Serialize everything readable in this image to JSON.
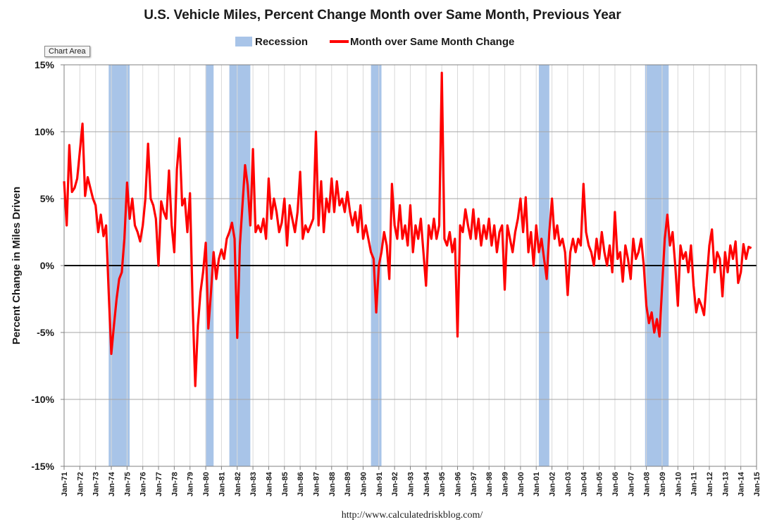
{
  "chart_data": {
    "type": "line",
    "title": "U.S. Vehicle Miles,  Percent Change Month over Same Month, Previous Year",
    "ylabel": "Percent Change in Miles Driven",
    "xlabel": "",
    "source": "http://www.calculatedriskblog.com/",
    "tooltip": "Chart Area",
    "ylim": [
      -15,
      15
    ],
    "y_ticks": [
      -15,
      -10,
      -5,
      0,
      5,
      10,
      15
    ],
    "y_tick_labels": [
      "-15%",
      "-10%",
      "-5%",
      "0%",
      "5%",
      "10%",
      "15%"
    ],
    "x_range": [
      "1971-01",
      "2015-01"
    ],
    "x_tick_labels": [
      "Jan-71",
      "Jan-72",
      "Jan-73",
      "Jan-74",
      "Jan-75",
      "Jan-76",
      "Jan-77",
      "Jan-78",
      "Jan-79",
      "Jan-80",
      "Jan-81",
      "Jan-82",
      "Jan-83",
      "Jan-84",
      "Jan-85",
      "Jan-86",
      "Jan-87",
      "Jan-88",
      "Jan-89",
      "Jan-90",
      "Jan-91",
      "Jan-92",
      "Jan-93",
      "Jan-94",
      "Jan-95",
      "Jan-96",
      "Jan-97",
      "Jan-98",
      "Jan-99",
      "Jan-00",
      "Jan-01",
      "Jan-02",
      "Jan-03",
      "Jan-04",
      "Jan-05",
      "Jan-06",
      "Jan-07",
      "Jan-08",
      "Jan-09",
      "Jan-10",
      "Jan-11",
      "Jan-12",
      "Jan-13",
      "Jan-14",
      "Jan-15"
    ],
    "grid": true,
    "legend_position": "top",
    "legend": [
      {
        "label": "Recession",
        "kind": "box",
        "color": "#a8c4e8"
      },
      {
        "label": "Month over Same Month Change",
        "kind": "line",
        "color": "#ff0000"
      }
    ],
    "recessions": [
      {
        "start": "1973-11",
        "end": "1975-03"
      },
      {
        "start": "1980-01",
        "end": "1980-07"
      },
      {
        "start": "1981-07",
        "end": "1982-11"
      },
      {
        "start": "1990-07",
        "end": "1991-03"
      },
      {
        "start": "2001-03",
        "end": "2001-11"
      },
      {
        "start": "2007-12",
        "end": "2009-06"
      }
    ],
    "series": [
      {
        "name": "Month over Same Month Change",
        "color": "#ff0000",
        "points": [
          [
            "1971-01",
            6.3
          ],
          [
            "1971-03",
            3.0
          ],
          [
            "1971-05",
            9.0
          ],
          [
            "1971-07",
            5.5
          ],
          [
            "1971-09",
            5.8
          ],
          [
            "1971-11",
            6.5
          ],
          [
            "1972-01",
            8.5
          ],
          [
            "1972-03",
            10.6
          ],
          [
            "1972-05",
            5.2
          ],
          [
            "1972-07",
            6.6
          ],
          [
            "1972-09",
            5.8
          ],
          [
            "1972-11",
            5.0
          ],
          [
            "1973-01",
            4.5
          ],
          [
            "1973-03",
            2.5
          ],
          [
            "1973-05",
            3.8
          ],
          [
            "1973-07",
            2.2
          ],
          [
            "1973-09",
            3.0
          ],
          [
            "1973-11",
            -2.0
          ],
          [
            "1974-01",
            -6.6
          ],
          [
            "1974-03",
            -4.5
          ],
          [
            "1974-05",
            -2.5
          ],
          [
            "1974-07",
            -1.0
          ],
          [
            "1974-09",
            -0.5
          ],
          [
            "1974-11",
            2.0
          ],
          [
            "1975-01",
            6.2
          ],
          [
            "1975-03",
            3.5
          ],
          [
            "1975-05",
            5.0
          ],
          [
            "1975-07",
            3.0
          ],
          [
            "1975-09",
            2.5
          ],
          [
            "1975-11",
            1.8
          ],
          [
            "1976-01",
            3.0
          ],
          [
            "1976-03",
            5.0
          ],
          [
            "1976-05",
            9.1
          ],
          [
            "1976-07",
            5.0
          ],
          [
            "1976-09",
            4.5
          ],
          [
            "1976-11",
            3.5
          ],
          [
            "1977-01",
            0.0
          ],
          [
            "1977-03",
            4.8
          ],
          [
            "1977-05",
            4.0
          ],
          [
            "1977-07",
            3.5
          ],
          [
            "1977-09",
            7.1
          ],
          [
            "1977-11",
            3.0
          ],
          [
            "1978-01",
            1.0
          ],
          [
            "1978-03",
            7.2
          ],
          [
            "1978-05",
            9.5
          ],
          [
            "1978-07",
            4.5
          ],
          [
            "1978-09",
            5.0
          ],
          [
            "1978-11",
            2.5
          ],
          [
            "1979-01",
            5.4
          ],
          [
            "1979-03",
            -3.0
          ],
          [
            "1979-05",
            -9.0
          ],
          [
            "1979-07",
            -4.5
          ],
          [
            "1979-09",
            -2.0
          ],
          [
            "1979-11",
            -0.5
          ],
          [
            "1980-01",
            1.7
          ],
          [
            "1980-03",
            -4.7
          ],
          [
            "1980-05",
            -2.0
          ],
          [
            "1980-07",
            1.0
          ],
          [
            "1980-09",
            -1.0
          ],
          [
            "1980-11",
            0.5
          ],
          [
            "1981-01",
            1.2
          ],
          [
            "1981-03",
            0.5
          ],
          [
            "1981-05",
            2.0
          ],
          [
            "1981-07",
            2.5
          ],
          [
            "1981-09",
            3.2
          ],
          [
            "1981-11",
            2.0
          ],
          [
            "1982-01",
            -5.4
          ],
          [
            "1982-03",
            1.5
          ],
          [
            "1982-05",
            4.5
          ],
          [
            "1982-07",
            7.5
          ],
          [
            "1982-09",
            6.0
          ],
          [
            "1982-11",
            3.0
          ],
          [
            "1983-01",
            8.7
          ],
          [
            "1983-03",
            2.5
          ],
          [
            "1983-05",
            3.0
          ],
          [
            "1983-07",
            2.5
          ],
          [
            "1983-09",
            3.5
          ],
          [
            "1983-11",
            2.0
          ],
          [
            "1984-01",
            6.5
          ],
          [
            "1984-03",
            3.5
          ],
          [
            "1984-05",
            5.0
          ],
          [
            "1984-07",
            4.0
          ],
          [
            "1984-09",
            2.5
          ],
          [
            "1984-11",
            3.2
          ],
          [
            "1985-01",
            5.0
          ],
          [
            "1985-03",
            1.5
          ],
          [
            "1985-05",
            4.5
          ],
          [
            "1985-07",
            3.5
          ],
          [
            "1985-09",
            2.5
          ],
          [
            "1985-11",
            4.0
          ],
          [
            "1986-01",
            7.0
          ],
          [
            "1986-03",
            2.0
          ],
          [
            "1986-05",
            3.0
          ],
          [
            "1986-07",
            2.5
          ],
          [
            "1986-09",
            3.0
          ],
          [
            "1986-11",
            3.5
          ],
          [
            "1987-01",
            10.0
          ],
          [
            "1987-03",
            3.0
          ],
          [
            "1987-05",
            6.3
          ],
          [
            "1987-07",
            2.5
          ],
          [
            "1987-09",
            5.0
          ],
          [
            "1987-11",
            4.0
          ],
          [
            "1988-01",
            6.5
          ],
          [
            "1988-03",
            4.0
          ],
          [
            "1988-05",
            6.3
          ],
          [
            "1988-07",
            4.5
          ],
          [
            "1988-09",
            5.0
          ],
          [
            "1988-11",
            4.0
          ],
          [
            "1989-01",
            5.5
          ],
          [
            "1989-03",
            4.0
          ],
          [
            "1989-05",
            3.0
          ],
          [
            "1989-07",
            4.0
          ],
          [
            "1989-09",
            2.5
          ],
          [
            "1989-11",
            4.5
          ],
          [
            "1990-01",
            2.0
          ],
          [
            "1990-03",
            3.0
          ],
          [
            "1990-05",
            2.0
          ],
          [
            "1990-07",
            1.0
          ],
          [
            "1990-09",
            0.5
          ],
          [
            "1990-11",
            -3.5
          ],
          [
            "1991-01",
            0.0
          ],
          [
            "1991-03",
            1.0
          ],
          [
            "1991-05",
            2.5
          ],
          [
            "1991-07",
            1.5
          ],
          [
            "1991-09",
            -1.0
          ],
          [
            "1991-11",
            6.1
          ],
          [
            "1992-01",
            3.0
          ],
          [
            "1992-03",
            2.0
          ],
          [
            "1992-05",
            4.5
          ],
          [
            "1992-07",
            2.0
          ],
          [
            "1992-09",
            3.0
          ],
          [
            "1992-11",
            1.5
          ],
          [
            "1993-01",
            4.5
          ],
          [
            "1993-03",
            1.0
          ],
          [
            "1993-05",
            3.0
          ],
          [
            "1993-07",
            2.0
          ],
          [
            "1993-09",
            3.5
          ],
          [
            "1993-11",
            1.0
          ],
          [
            "1994-01",
            -1.5
          ],
          [
            "1994-03",
            3.0
          ],
          [
            "1994-05",
            2.0
          ],
          [
            "1994-07",
            3.5
          ],
          [
            "1994-09",
            2.0
          ],
          [
            "1994-11",
            3.0
          ],
          [
            "1995-01",
            14.4
          ],
          [
            "1995-03",
            2.0
          ],
          [
            "1995-05",
            1.5
          ],
          [
            "1995-07",
            2.5
          ],
          [
            "1995-09",
            1.0
          ],
          [
            "1995-11",
            2.0
          ],
          [
            "1996-01",
            -5.3
          ],
          [
            "1996-03",
            3.0
          ],
          [
            "1996-05",
            2.5
          ],
          [
            "1996-07",
            4.2
          ],
          [
            "1996-09",
            3.0
          ],
          [
            "1996-11",
            2.0
          ],
          [
            "1997-01",
            4.2
          ],
          [
            "1997-03",
            2.0
          ],
          [
            "1997-05",
            3.5
          ],
          [
            "1997-07",
            1.5
          ],
          [
            "1997-09",
            3.0
          ],
          [
            "1997-11",
            2.0
          ],
          [
            "1998-01",
            3.5
          ],
          [
            "1998-03",
            1.5
          ],
          [
            "1998-05",
            3.0
          ],
          [
            "1998-07",
            1.0
          ],
          [
            "1998-09",
            2.5
          ],
          [
            "1998-11",
            3.0
          ],
          [
            "1999-01",
            -1.8
          ],
          [
            "1999-03",
            3.0
          ],
          [
            "1999-05",
            2.0
          ],
          [
            "1999-07",
            1.0
          ],
          [
            "1999-09",
            2.5
          ],
          [
            "1999-11",
            3.5
          ],
          [
            "2000-01",
            5.0
          ],
          [
            "2000-03",
            2.5
          ],
          [
            "2000-05",
            5.1
          ],
          [
            "2000-07",
            1.0
          ],
          [
            "2000-09",
            2.5
          ],
          [
            "2000-11",
            0.0
          ],
          [
            "2001-01",
            3.0
          ],
          [
            "2001-03",
            1.0
          ],
          [
            "2001-05",
            2.0
          ],
          [
            "2001-07",
            0.5
          ],
          [
            "2001-09",
            -1.0
          ],
          [
            "2001-11",
            2.5
          ],
          [
            "2002-01",
            5.0
          ],
          [
            "2002-03",
            2.0
          ],
          [
            "2002-05",
            3.0
          ],
          [
            "2002-07",
            1.5
          ],
          [
            "2002-09",
            2.0
          ],
          [
            "2002-11",
            1.0
          ],
          [
            "2003-01",
            -2.2
          ],
          [
            "2003-03",
            1.0
          ],
          [
            "2003-05",
            2.0
          ],
          [
            "2003-07",
            1.0
          ],
          [
            "2003-09",
            2.0
          ],
          [
            "2003-11",
            1.5
          ],
          [
            "2004-01",
            6.1
          ],
          [
            "2004-03",
            2.5
          ],
          [
            "2004-05",
            1.5
          ],
          [
            "2004-07",
            1.0
          ],
          [
            "2004-09",
            0.0
          ],
          [
            "2004-11",
            2.0
          ],
          [
            "2005-01",
            0.5
          ],
          [
            "2005-03",
            2.5
          ],
          [
            "2005-05",
            1.0
          ],
          [
            "2005-07",
            0.0
          ],
          [
            "2005-09",
            1.5
          ],
          [
            "2005-11",
            -0.5
          ],
          [
            "2006-01",
            4.0
          ],
          [
            "2006-03",
            0.5
          ],
          [
            "2006-05",
            1.0
          ],
          [
            "2006-07",
            -1.2
          ],
          [
            "2006-09",
            1.5
          ],
          [
            "2006-11",
            0.5
          ],
          [
            "2007-01",
            -1.0
          ],
          [
            "2007-03",
            2.0
          ],
          [
            "2007-05",
            0.5
          ],
          [
            "2007-07",
            1.0
          ],
          [
            "2007-09",
            2.0
          ],
          [
            "2007-11",
            0.0
          ],
          [
            "2008-01",
            -3.0
          ],
          [
            "2008-03",
            -4.3
          ],
          [
            "2008-05",
            -3.5
          ],
          [
            "2008-07",
            -5.0
          ],
          [
            "2008-09",
            -4.0
          ],
          [
            "2008-11",
            -5.3
          ],
          [
            "2009-01",
            -1.5
          ],
          [
            "2009-03",
            2.0
          ],
          [
            "2009-05",
            3.8
          ],
          [
            "2009-07",
            1.5
          ],
          [
            "2009-09",
            2.5
          ],
          [
            "2009-11",
            0.0
          ],
          [
            "2010-01",
            -3.0
          ],
          [
            "2010-03",
            1.5
          ],
          [
            "2010-05",
            0.5
          ],
          [
            "2010-07",
            1.0
          ],
          [
            "2010-09",
            -0.5
          ],
          [
            "2010-11",
            1.5
          ],
          [
            "2011-01",
            -1.5
          ],
          [
            "2011-03",
            -3.5
          ],
          [
            "2011-05",
            -2.5
          ],
          [
            "2011-07",
            -3.0
          ],
          [
            "2011-09",
            -3.7
          ],
          [
            "2011-11",
            -1.0
          ],
          [
            "2012-01",
            1.5
          ],
          [
            "2012-03",
            2.7
          ],
          [
            "2012-05",
            -0.5
          ],
          [
            "2012-07",
            1.0
          ],
          [
            "2012-09",
            0.5
          ],
          [
            "2012-11",
            -2.3
          ],
          [
            "2013-01",
            1.0
          ],
          [
            "2013-03",
            -0.5
          ],
          [
            "2013-05",
            1.5
          ],
          [
            "2013-07",
            0.5
          ],
          [
            "2013-09",
            1.8
          ],
          [
            "2013-11",
            -1.3
          ],
          [
            "2014-01",
            -0.5
          ],
          [
            "2014-03",
            1.6
          ],
          [
            "2014-05",
            0.5
          ],
          [
            "2014-07",
            1.4
          ],
          [
            "2014-09",
            1.3
          ]
        ]
      }
    ]
  }
}
